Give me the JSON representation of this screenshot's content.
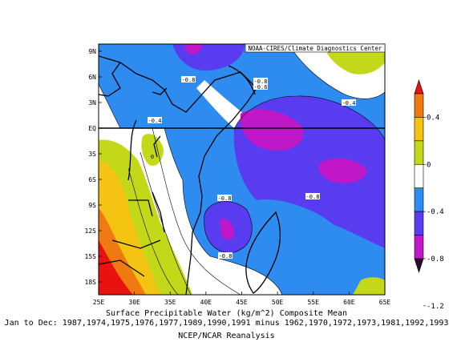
{
  "header": {
    "credit": "NOAA-CIRES/Climate Diagnostics Center"
  },
  "map": {
    "x_ticks": [
      "25E",
      "30E",
      "35E",
      "40E",
      "45E",
      "50E",
      "55E",
      "60E",
      "65E"
    ],
    "y_ticks": [
      "9N",
      "6N",
      "3N",
      "EQ",
      "3S",
      "6S",
      "9S",
      "12S",
      "15S",
      "18S"
    ],
    "contour_labels": [
      "-0.8",
      "-0.8",
      "-0.6",
      "-0.4",
      "-0.4",
      "0",
      "-0.8",
      "-0.8",
      "-0.8"
    ]
  },
  "colorbar": {
    "ticks": [
      "0.4",
      "0",
      "-0.4",
      "-0.8",
      "-1.2"
    ],
    "colors": [
      "#e8120e",
      "#f07a12",
      "#f5c412",
      "#c4d81a",
      "#ffffff",
      "#2e8cf0",
      "#5a3cf0",
      "#c018c8",
      "#2a0a32"
    ]
  },
  "captions": {
    "line1": "Surface Precipitable Water (kg/m^2) Composite Mean",
    "line2": "Jan to Dec: 1987,1974,1975,1976,1977,1989,1990,1991 minus 1962,1970,1972,1973,1981,1992,1993",
    "line3": "NCEP/NCAR Reanalysis"
  }
}
